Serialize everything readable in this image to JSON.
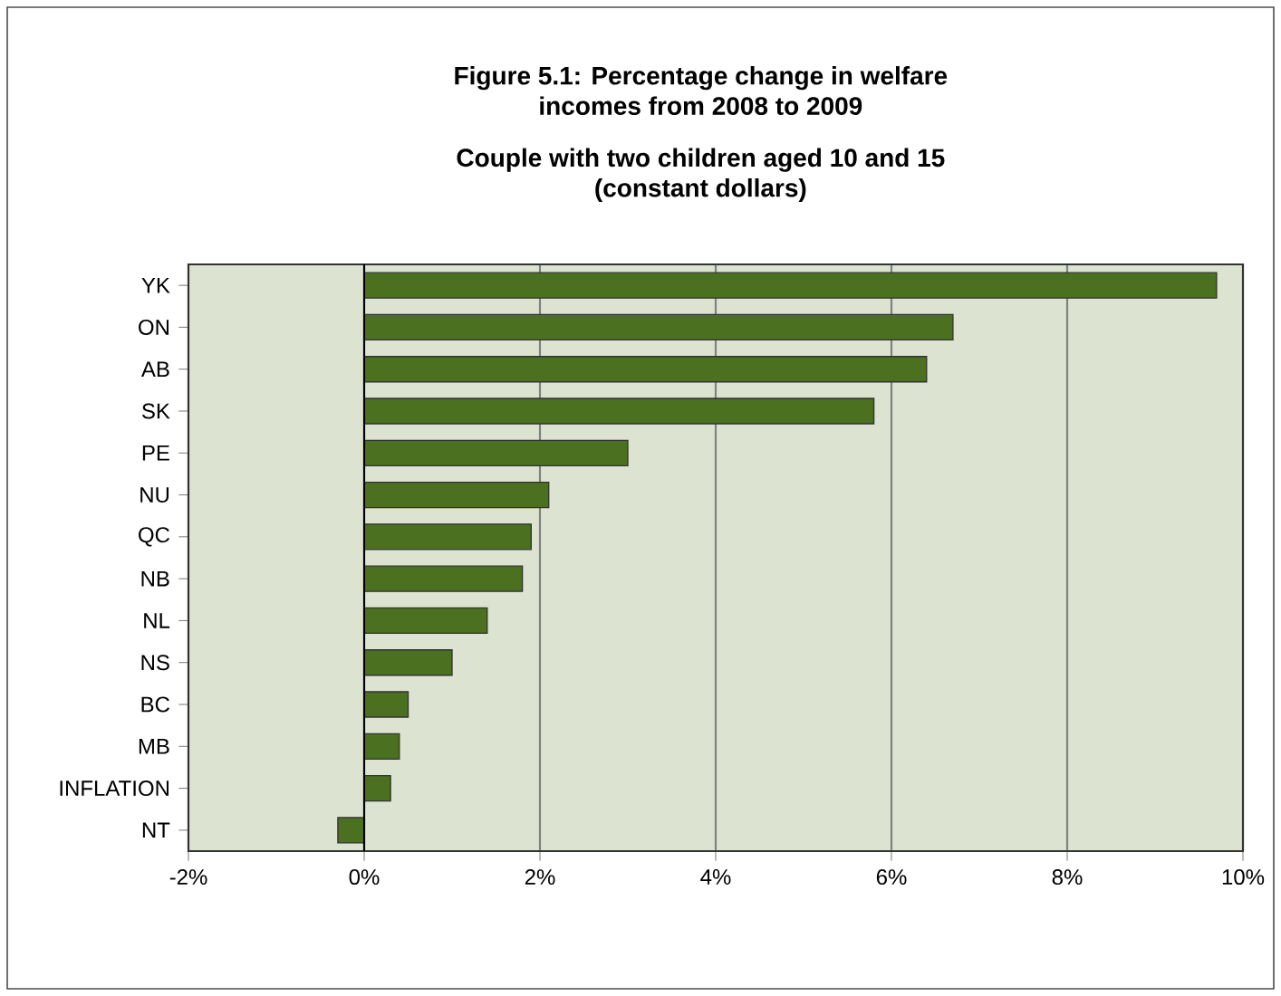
{
  "chart_data": {
    "type": "bar",
    "orientation": "horizontal",
    "title": "Figure 5.1: Percentage change in welfare incomes from 2008 to 2009",
    "subtitle": "Couple with two children aged 10 and 15 (constant dollars)",
    "categories": [
      "YK",
      "ON",
      "AB",
      "SK",
      "PE",
      "NU",
      "QC",
      "NB",
      "NL",
      "NS",
      "BC",
      "MB",
      "INFLATION",
      "NT"
    ],
    "values": [
      9.7,
      6.7,
      6.4,
      5.8,
      3.0,
      2.1,
      1.9,
      1.8,
      1.4,
      1.0,
      0.5,
      0.4,
      0.3,
      -0.3
    ],
    "color": "#4a7020",
    "xlim": [
      -2,
      10
    ],
    "xticks": [
      {
        "value": -2,
        "label": "-2%"
      },
      {
        "value": 0,
        "label": "0%"
      },
      {
        "value": 2,
        "label": "2%"
      },
      {
        "value": 4,
        "label": "4%"
      },
      {
        "value": 6,
        "label": "6%"
      },
      {
        "value": 8,
        "label": "8%"
      },
      {
        "value": 10,
        "label": "10%"
      }
    ],
    "grid": "x"
  }
}
